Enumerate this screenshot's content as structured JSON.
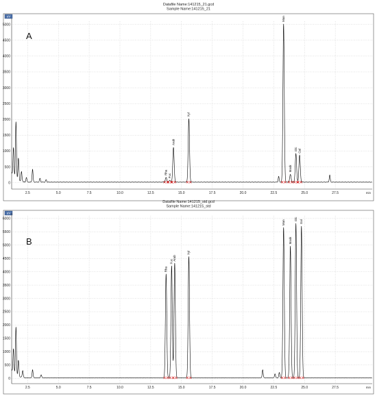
{
  "chart_data": [
    {
      "type": "line",
      "panel_label": "A",
      "header_lines": [
        "Datafile Name:141215_21.gcd",
        "Sample Name:141215_21"
      ],
      "corner_badge": "uV",
      "x_unit": "min",
      "xlim": [
        1.2,
        30.5
      ],
      "ylim": [
        -200,
        5100
      ],
      "x_ticks": [
        2.5,
        5.0,
        7.5,
        10.0,
        12.5,
        15.0,
        17.5,
        20.0,
        22.5,
        25.0,
        27.5
      ],
      "x_tick_labels": [
        "2.5",
        "5.0",
        "7.5",
        "10.0",
        "12.5",
        "15.0",
        "17.5",
        "20.0",
        "22.5",
        "25.0",
        "27.5"
      ],
      "y_ticks": [
        0,
        500,
        1000,
        1500,
        2000,
        2500,
        3000,
        3500,
        4000,
        4500,
        5000
      ],
      "y_tick_labels": [
        "0",
        "500",
        "1000",
        "1500",
        "2000",
        "2500",
        "3000",
        "3500",
        "4000",
        "4500",
        "5000"
      ],
      "grid": true,
      "peaks": [
        {
          "name": "Rha",
          "x": 13.75,
          "y": 150
        },
        {
          "name": "Fuc",
          "x": 14.05,
          "y": 60
        },
        {
          "name": "Arab",
          "x": 14.35,
          "y": 1100
        },
        {
          "name": "Xyl",
          "x": 15.6,
          "y": 2000
        },
        {
          "name": "Man",
          "x": 23.3,
          "y": 5000
        },
        {
          "name": "Mask",
          "x": 23.85,
          "y": 250
        },
        {
          "name": "Glc",
          "x": 24.3,
          "y": 900
        },
        {
          "name": "Gal",
          "x": 24.6,
          "y": 850
        }
      ],
      "minor_peaks": [
        {
          "x": 1.55,
          "y": 1800
        },
        {
          "x": 1.35,
          "y": 900
        },
        {
          "x": 1.75,
          "y": 700
        },
        {
          "x": 2.0,
          "y": 300
        },
        {
          "x": 2.4,
          "y": 150
        },
        {
          "x": 2.9,
          "y": 400
        },
        {
          "x": 3.5,
          "y": 120
        },
        {
          "x": 4.0,
          "y": 80
        },
        {
          "x": 22.9,
          "y": 180
        },
        {
          "x": 27.05,
          "y": 220
        }
      ]
    },
    {
      "type": "line",
      "panel_label": "B",
      "header_lines": [
        "Datafile Name:141215_std.gcd",
        "Sample Name:141215_std"
      ],
      "corner_badge": "uV",
      "x_unit": "min",
      "xlim": [
        1.2,
        30.5
      ],
      "ylim": [
        -200,
        6100
      ],
      "x_ticks": [
        2.5,
        5.0,
        7.5,
        10.0,
        12.5,
        15.0,
        17.5,
        20.0,
        22.5,
        25.0,
        27.5
      ],
      "x_tick_labels": [
        "2.5",
        "5.0",
        "7.5",
        "10.0",
        "12.5",
        "15.0",
        "17.5",
        "20.0",
        "22.5",
        "25.0",
        "27.5"
      ],
      "y_ticks": [
        0,
        500,
        1000,
        1500,
        2000,
        2500,
        3000,
        3500,
        4000,
        4500,
        5000,
        5500,
        6000
      ],
      "y_tick_labels": [
        "0",
        "500",
        "1000",
        "1500",
        "2000",
        "2500",
        "3000",
        "3500",
        "4000",
        "4500",
        "5000",
        "5500",
        "6000"
      ],
      "grid": true,
      "peaks": [
        {
          "name": "Rha",
          "x": 13.75,
          "y": 3900
        },
        {
          "name": "Fuc",
          "x": 14.2,
          "y": 4200
        },
        {
          "name": "Arab",
          "x": 14.45,
          "y": 4300
        },
        {
          "name": "Xyl",
          "x": 15.6,
          "y": 4550
        },
        {
          "name": "Man",
          "x": 23.3,
          "y": 5650
        },
        {
          "name": "Mask",
          "x": 23.85,
          "y": 4950
        },
        {
          "name": "Glc",
          "x": 24.3,
          "y": 5800
        },
        {
          "name": "Gal",
          "x": 24.75,
          "y": 5700
        }
      ],
      "minor_peaks": [
        {
          "x": 1.55,
          "y": 1800
        },
        {
          "x": 1.35,
          "y": 900
        },
        {
          "x": 1.75,
          "y": 600
        },
        {
          "x": 2.1,
          "y": 250
        },
        {
          "x": 2.9,
          "y": 300
        },
        {
          "x": 3.6,
          "y": 120
        },
        {
          "x": 21.6,
          "y": 300
        },
        {
          "x": 22.6,
          "y": 150
        },
        {
          "x": 22.95,
          "y": 200
        }
      ]
    }
  ]
}
